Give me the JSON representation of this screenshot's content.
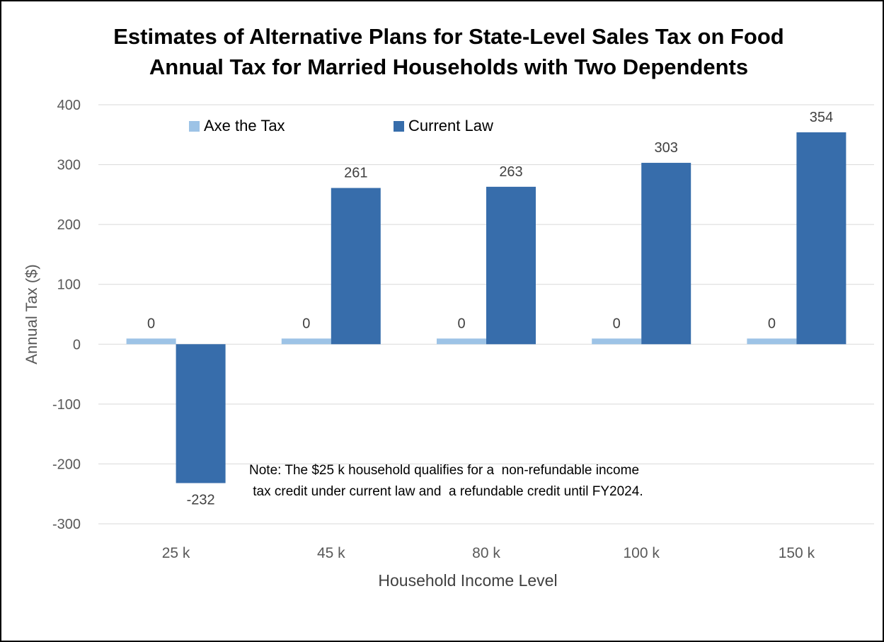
{
  "chart_data": {
    "type": "bar",
    "title": "Estimates of Alternative Plans for State-Level Sales Tax on Food",
    "subtitle": "Annual Tax for Married Households with Two Dependents",
    "xlabel": "Household Income Level",
    "ylabel": "Annual Tax ($)",
    "categories": [
      "25 k",
      "45 k",
      "80 k",
      "100 k",
      "150 k"
    ],
    "series": [
      {
        "name": "Axe the Tax",
        "values": [
          0,
          0,
          0,
          0,
          0
        ],
        "labels": [
          "0",
          "0",
          "0",
          "0",
          "0"
        ],
        "color": "#9DC3E6"
      },
      {
        "name": "Current Law",
        "values": [
          -232,
          261,
          263,
          303,
          354
        ],
        "labels": [
          "-232",
          "261",
          "263",
          "303",
          "354"
        ],
        "color": "#376DAB"
      }
    ],
    "ylim": [
      -300,
      400
    ],
    "yticks": [
      "-300",
      "-200",
      "-100",
      "0",
      "100",
      "200",
      "300",
      "400"
    ],
    "grid": true,
    "legend": "top-left",
    "note_lines": [
      "Note: The $25 k household qualifies for a  non-refundable income",
      " tax credit under current law and  a refundable credit until FY2024."
    ]
  }
}
